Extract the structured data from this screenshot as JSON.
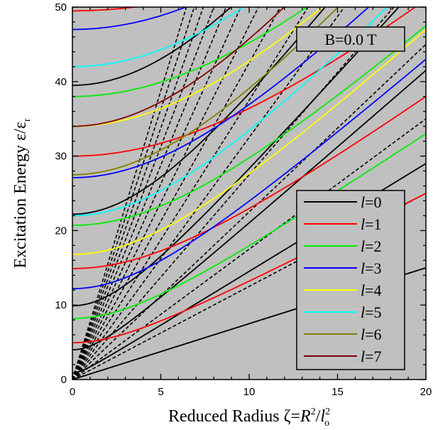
{
  "chart_data": {
    "type": "line",
    "xlabel": "Reduced Radius ζ=R²/l_o²",
    "xlabel_parts": {
      "pre": "Reduced Radius ζ=",
      "R": "R",
      "sup2a": "2",
      "slash": "/",
      "l": "l",
      "sub_o": "o",
      "sup2b": "2"
    },
    "ylabel": "Excitation Energy ε/ε_r",
    "ylabel_parts": {
      "main": "Excitation Energy ε/ε",
      "sub": "r"
    },
    "annotation": "B=0.0 T",
    "xlim": [
      0,
      20
    ],
    "ylim": [
      0,
      50
    ],
    "x_ticks": [
      "0",
      "5",
      "10",
      "15",
      "20"
    ],
    "y_ticks": [
      "0",
      "10",
      "20",
      "30",
      "40",
      "50"
    ],
    "background": "#c0c0c0",
    "legend_position": "bottom-right",
    "series": [
      {
        "name": "l=0",
        "l_italic": "l",
        "suffix": "=0",
        "color": "#000000",
        "zeta0": [
          0,
          0.9,
          4.0,
          9.9,
          22.2,
          39.5
        ],
        "right_slope": [
          0.38,
          1.05,
          1.7,
          2.35,
          3.0,
          3.65
        ],
        "right_y20": [
          15.0,
          29.0,
          41.5,
          54.0,
          66.5,
          79.0
        ]
      },
      {
        "name": "l=1",
        "l_italic": "l",
        "suffix": "=1",
        "color": "#ff0000",
        "zeta0": [
          4.95,
          14.9,
          30.0,
          49.5
        ],
        "right_y20": [
          25.0,
          38.0,
          51.0,
          64.0
        ]
      },
      {
        "name": "l=2",
        "l_italic": "l",
        "suffix": "=2",
        "color": "#00ee00",
        "zeta0": [
          8.2,
          20.7,
          38.0
        ],
        "right_y20": [
          33.0,
          47.5,
          62.0
        ]
      },
      {
        "name": "l=3",
        "l_italic": "l",
        "suffix": "=3",
        "color": "#0000ff",
        "zeta0": [
          12.2,
          27.1,
          47.0
        ],
        "right_y20": [
          43.0,
          57.0,
          71.0
        ]
      },
      {
        "name": "l=4",
        "l_italic": "l",
        "suffix": "=4",
        "color": "#ffff00",
        "zeta0": [
          16.8,
          34.0
        ],
        "right_y20": [
          47.0,
          62.0
        ]
      },
      {
        "name": "l=5",
        "l_italic": "l",
        "suffix": "=5",
        "color": "#00ffff",
        "zeta0": [
          22.0,
          42.0
        ],
        "right_y20": [
          55.0,
          70.0
        ]
      },
      {
        "name": "l=6",
        "l_italic": "l",
        "suffix": "=6",
        "color": "#808000",
        "zeta0": [
          27.5
        ],
        "right_y20": [
          62.0
        ]
      },
      {
        "name": "l=7",
        "l_italic": "l",
        "suffix": "=7",
        "color": "#800000",
        "zeta0": [
          34.0
        ],
        "right_y20": [
          70.0
        ]
      }
    ],
    "asymptote_slopes": [
      0.75,
      1.25,
      1.75,
      2.25,
      2.75,
      3.25,
      3.75,
      4.25,
      4.75,
      5.25,
      5.75,
      6.25,
      6.75,
      7.25,
      7.75
    ],
    "asymptote_style": "black dashed"
  }
}
